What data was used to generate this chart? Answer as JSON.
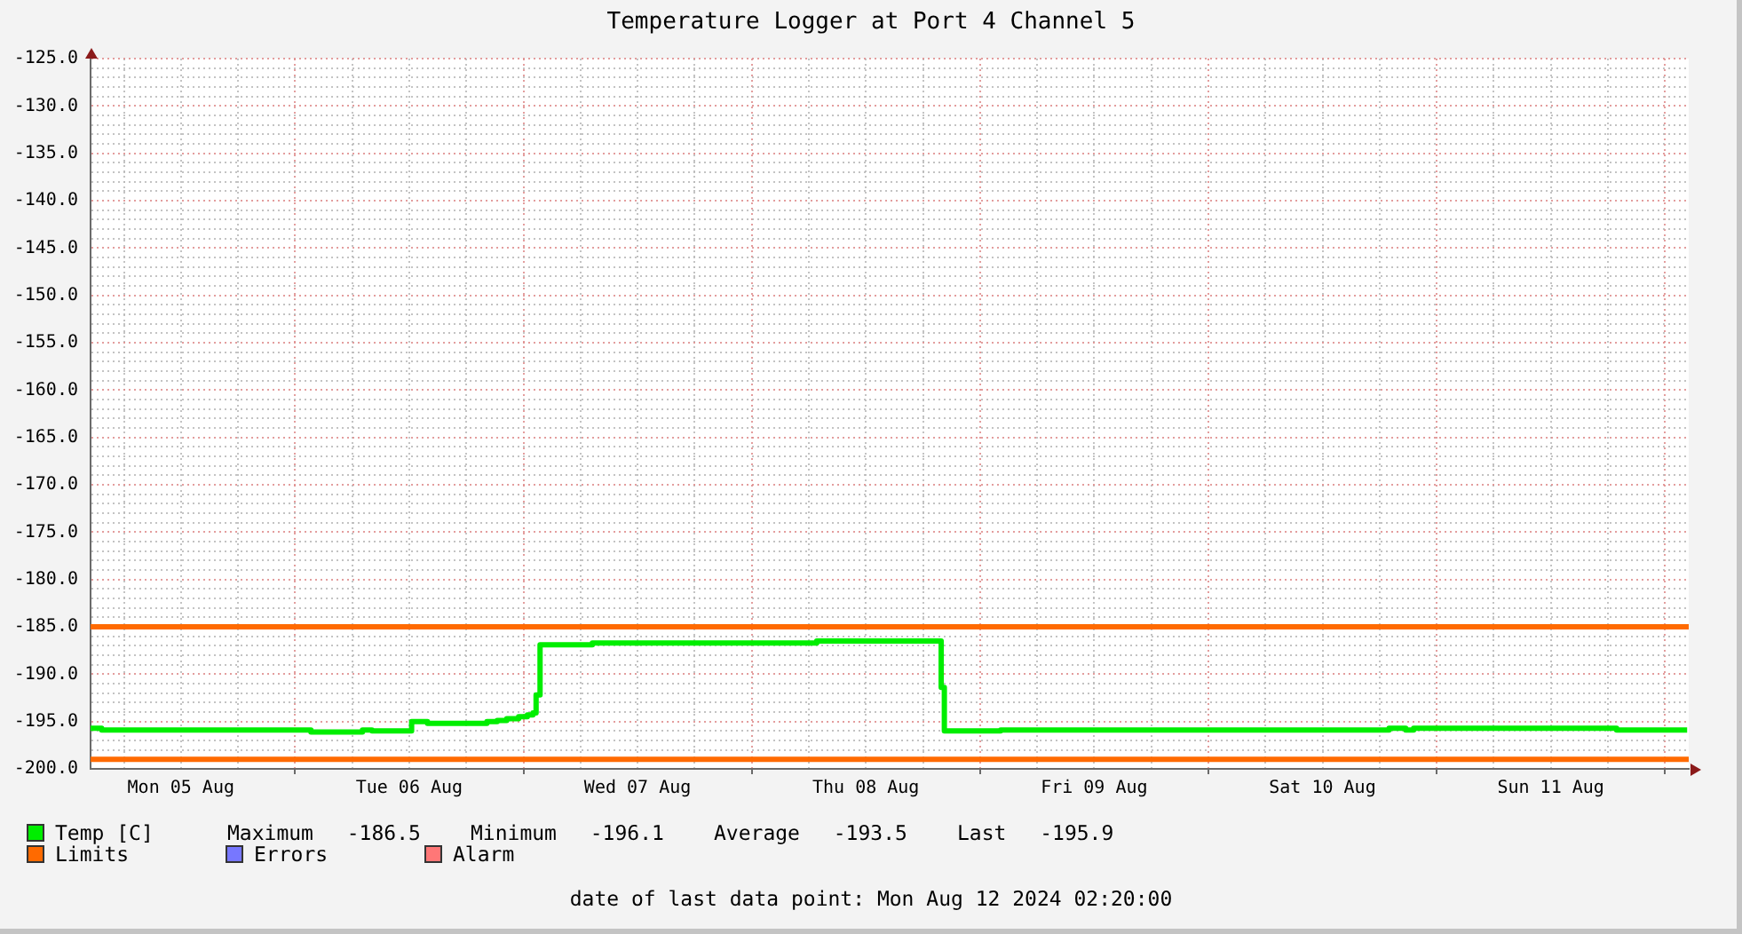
{
  "chart_data": {
    "type": "step",
    "title": "Temperature Logger at Port 4 Channel 5",
    "series": [
      {
        "name": "Temp [C]",
        "color": "#00ee00",
        "x": [
          "2024-08-05T02:30",
          "2024-08-05T03:40",
          "2024-08-06T01:40",
          "2024-08-06T07:05",
          "2024-08-06T08:05",
          "2024-08-06T12:15",
          "2024-08-06T13:55",
          "2024-08-06T20:10",
          "2024-08-06T21:15",
          "2024-08-06T22:15",
          "2024-08-06T23:30",
          "2024-08-07T00:25",
          "2024-08-07T01:00",
          "2024-08-07T01:20",
          "2024-08-07T01:45",
          "2024-08-07T07:15",
          "2024-08-08T06:50",
          "2024-08-08T19:55",
          "2024-08-08T20:15",
          "2024-08-09T02:10",
          "2024-08-10T19:00",
          "2024-08-10T20:45",
          "2024-08-10T21:35",
          "2024-08-11T18:55",
          "2024-08-12T02:20"
        ],
        "values": [
          -195.7,
          -195.9,
          -196.1,
          -195.9,
          -196.0,
          -195.0,
          -195.2,
          -195.0,
          -194.9,
          -194.7,
          -194.5,
          -194.3,
          -194.1,
          -192.2,
          -186.9,
          -186.7,
          -186.5,
          -191.4,
          -196.0,
          -195.9,
          -195.7,
          -195.9,
          -195.7,
          -195.9,
          -195.9
        ]
      },
      {
        "name": "Limits",
        "type": "line",
        "color": "#ff6a00",
        "x": [
          "2024-08-05T02:30",
          "2024-08-12T02:30"
        ],
        "values": [
          -185,
          -185
        ]
      },
      {
        "type": "line",
        "color": "#ff6a00",
        "x": [
          "2024-08-05T02:30",
          "2024-08-12T02:30"
        ],
        "values": [
          -199,
          -199
        ]
      },
      {
        "name": "Errors",
        "type": "line",
        "color": "#7777ff"
      },
      {
        "name": "Alarm",
        "type": "line",
        "color": "#ff7777"
      }
    ],
    "xlim": [
      "2024-08-05T02:30",
      "2024-08-12T02:30"
    ],
    "xticks": [
      {
        "value": "2024-08-05T06:00",
        "label": null
      },
      {
        "value": "2024-08-05T12:00",
        "label": "Mon 05 Aug"
      },
      {
        "value": "2024-08-05T18:00",
        "label": null
      },
      {
        "value": "2024-08-06T00:00",
        "label": null
      },
      {
        "value": "2024-08-06T06:00",
        "label": null
      },
      {
        "value": "2024-08-06T12:00",
        "label": "Tue 06 Aug"
      },
      {
        "value": "2024-08-06T18:00",
        "label": null
      },
      {
        "value": "2024-08-07T00:00",
        "label": null
      },
      {
        "value": "2024-08-07T06:00",
        "label": null
      },
      {
        "value": "2024-08-07T12:00",
        "label": "Wed 07 Aug"
      },
      {
        "value": "2024-08-07T18:00",
        "label": null
      },
      {
        "value": "2024-08-08T00:00",
        "label": null
      },
      {
        "value": "2024-08-08T06:00",
        "label": null
      },
      {
        "value": "2024-08-08T12:00",
        "label": "Thu 08 Aug"
      },
      {
        "value": "2024-08-08T18:00",
        "label": null
      },
      {
        "value": "2024-08-09T00:00",
        "label": null
      },
      {
        "value": "2024-08-09T06:00",
        "label": null
      },
      {
        "value": "2024-08-09T12:00",
        "label": "Fri 09 Aug"
      },
      {
        "value": "2024-08-09T18:00",
        "label": null
      },
      {
        "value": "2024-08-10T00:00",
        "label": null
      },
      {
        "value": "2024-08-10T06:00",
        "label": null
      },
      {
        "value": "2024-08-10T12:00",
        "label": "Sat 10 Aug"
      },
      {
        "value": "2024-08-10T18:00",
        "label": null
      },
      {
        "value": "2024-08-11T00:00",
        "label": null
      },
      {
        "value": "2024-08-11T06:00",
        "label": null
      },
      {
        "value": "2024-08-11T12:00",
        "label": "Sun 11 Aug"
      },
      {
        "value": "2024-08-11T18:00",
        "label": null
      },
      {
        "value": "2024-08-12T00:00",
        "label": null
      }
    ],
    "ylim": [
      -200,
      -125
    ],
    "yticks": [
      {
        "value": -200,
        "label": "-200.0"
      },
      {
        "value": -199,
        "label": null
      },
      {
        "value": -198,
        "label": null
      },
      {
        "value": -197,
        "label": null
      },
      {
        "value": -196,
        "label": null
      },
      {
        "value": -195,
        "label": "-195.0"
      },
      {
        "value": -194,
        "label": null
      },
      {
        "value": -193,
        "label": null
      },
      {
        "value": -192,
        "label": null
      },
      {
        "value": -191,
        "label": null
      },
      {
        "value": -190,
        "label": "-190.0"
      },
      {
        "value": -189,
        "label": null
      },
      {
        "value": -188,
        "label": null
      },
      {
        "value": -187,
        "label": null
      },
      {
        "value": -186,
        "label": null
      },
      {
        "value": -185,
        "label": "-185.0"
      },
      {
        "value": -184,
        "label": null
      },
      {
        "value": -183,
        "label": null
      },
      {
        "value": -182,
        "label": null
      },
      {
        "value": -181,
        "label": null
      },
      {
        "value": -180,
        "label": "-180.0"
      },
      {
        "value": -179,
        "label": null
      },
      {
        "value": -178,
        "label": null
      },
      {
        "value": -177,
        "label": null
      },
      {
        "value": -176,
        "label": null
      },
      {
        "value": -175,
        "label": "-175.0"
      },
      {
        "value": -174,
        "label": null
      },
      {
        "value": -173,
        "label": null
      },
      {
        "value": -172,
        "label": null
      },
      {
        "value": -171,
        "label": null
      },
      {
        "value": -170,
        "label": "-170.0"
      },
      {
        "value": -169,
        "label": null
      },
      {
        "value": -168,
        "label": null
      },
      {
        "value": -167,
        "label": null
      },
      {
        "value": -166,
        "label": null
      },
      {
        "value": -165,
        "label": "-165.0"
      },
      {
        "value": -164,
        "label": null
      },
      {
        "value": -163,
        "label": null
      },
      {
        "value": -162,
        "label": null
      },
      {
        "value": -161,
        "label": null
      },
      {
        "value": -160,
        "label": "-160.0"
      },
      {
        "value": -159,
        "label": null
      },
      {
        "value": -158,
        "label": null
      },
      {
        "value": -157,
        "label": null
      },
      {
        "value": -156,
        "label": null
      },
      {
        "value": -155,
        "label": "-155.0"
      },
      {
        "value": -154,
        "label": null
      },
      {
        "value": -153,
        "label": null
      },
      {
        "value": -152,
        "label": null
      },
      {
        "value": -151,
        "label": null
      },
      {
        "value": -150,
        "label": "-150.0"
      },
      {
        "value": -149,
        "label": null
      },
      {
        "value": -148,
        "label": null
      },
      {
        "value": -147,
        "label": null
      },
      {
        "value": -146,
        "label": null
      },
      {
        "value": -145,
        "label": "-145.0"
      },
      {
        "value": -144,
        "label": null
      },
      {
        "value": -143,
        "label": null
      },
      {
        "value": -142,
        "label": null
      },
      {
        "value": -141,
        "label": null
      },
      {
        "value": -140,
        "label": "-140.0"
      },
      {
        "value": -139,
        "label": null
      },
      {
        "value": -138,
        "label": null
      },
      {
        "value": -137,
        "label": null
      },
      {
        "value": -136,
        "label": null
      },
      {
        "value": -135,
        "label": "-135.0"
      },
      {
        "value": -134,
        "label": null
      },
      {
        "value": -133,
        "label": null
      },
      {
        "value": -132,
        "label": null
      },
      {
        "value": -131,
        "label": null
      },
      {
        "value": -130,
        "label": "-130.0"
      },
      {
        "value": -129,
        "label": null
      },
      {
        "value": -128,
        "label": null
      },
      {
        "value": -127,
        "label": null
      },
      {
        "value": -126,
        "label": null
      },
      {
        "value": -125,
        "label": "-125.0"
      }
    ],
    "grid": true,
    "legend": "bottom left",
    "annotations": [
      "Maximum -186.5",
      "Minimum -196.1",
      "Average -193.5",
      "Last -195.9",
      "date of last data point: Mon Aug 12 2024 02:20:00"
    ]
  }
}
